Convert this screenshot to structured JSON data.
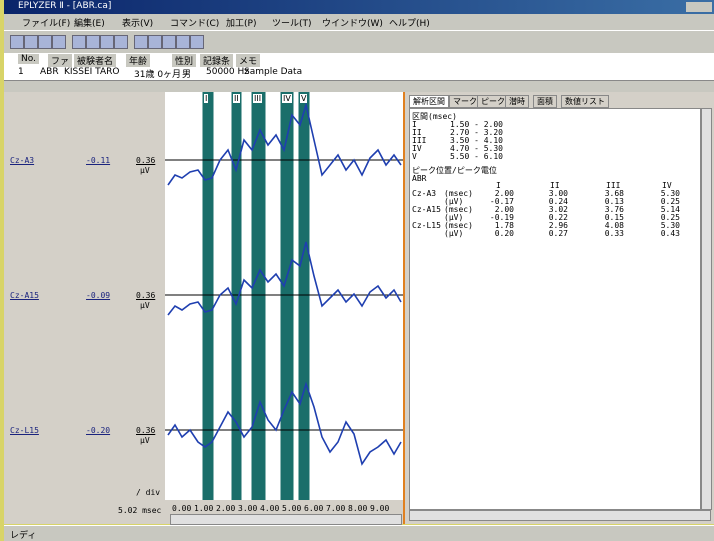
{
  "window": {
    "title": "EPLYZER Ⅱ - [ABR.ca]"
  },
  "menu": [
    "ファイル(F)",
    "編集(E)",
    "表示(V)",
    "コマンド(C)",
    "加工(P)",
    "ツール(T)",
    "ウインドウ(W)",
    "ヘルプ(H)"
  ],
  "records": {
    "headers": [
      "No.",
      "ファ",
      "被験者名",
      "年齢",
      "性別",
      "記録条",
      "メモ"
    ],
    "rows": [
      [
        "1",
        "ABR",
        "KISSEI TARO",
        "31歳 0ヶ月",
        "男",
        "50000 Hz",
        "Sample Data"
      ]
    ]
  },
  "channels": [
    {
      "name": "Cz-A3",
      "offset": "-0.11",
      "scale": "0.36",
      "unit": "μV"
    },
    {
      "name": "Cz-A15",
      "offset": "-0.09",
      "scale": "0.36",
      "unit": "μV"
    },
    {
      "name": "Cz-L15",
      "offset": "-0.20",
      "scale": "0.36",
      "unit": "μV"
    }
  ],
  "time_div": "/ div",
  "time_scale": "5.02 msec",
  "x_axis_labels": [
    "0.00",
    "1.00",
    "2.00",
    "3.00",
    "4.00",
    "5.00",
    "6.00",
    "7.00",
    "8.00",
    "9.00"
  ],
  "peak_labels": [
    "I",
    "II",
    "III",
    "IV",
    "V"
  ],
  "tabs": [
    "解析区間",
    "マーク",
    "ピーク",
    "潜時",
    "面積",
    "数値リスト"
  ],
  "analysis": {
    "interval_title": "区間(msec)",
    "intervals": [
      {
        "label": "I",
        "range": "1.50 - 2.00"
      },
      {
        "label": "II",
        "range": "2.70 - 3.20"
      },
      {
        "label": "III",
        "range": "3.50 - 4.10"
      },
      {
        "label": "IV",
        "range": "4.70 - 5.30"
      },
      {
        "label": "V",
        "range": "5.50 - 6.10"
      }
    ],
    "peak_title": "ピーク位置/ピーク電位",
    "subtitle": "ABR",
    "columns": [
      "I",
      "II",
      "III",
      "IV"
    ],
    "rows": [
      {
        "channel": "Cz-A3",
        "unit": "(msec)",
        "values": [
          "2.00",
          "3.00",
          "3.68",
          "5.30"
        ]
      },
      {
        "unit": "(μV)",
        "values": [
          "-0.17",
          "0.24",
          "0.13",
          "0.25"
        ]
      },
      {
        "channel": "Cz-A15",
        "unit": "(msec)",
        "values": [
          "2.00",
          "3.02",
          "3.76",
          "5.14"
        ]
      },
      {
        "unit": "(μV)",
        "values": [
          "-0.19",
          "0.22",
          "0.15",
          "0.25"
        ]
      },
      {
        "channel": "Cz-L15",
        "unit": "(msec)",
        "values": [
          "1.78",
          "2.96",
          "4.08",
          "5.30"
        ]
      },
      {
        "unit": "(μV)",
        "values": [
          "0.20",
          "0.27",
          "0.33",
          "0.43"
        ]
      }
    ]
  },
  "status": "レディ"
}
